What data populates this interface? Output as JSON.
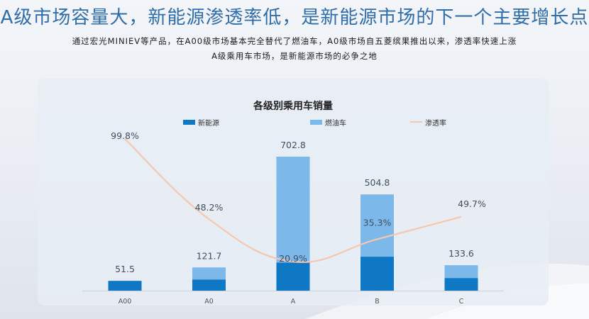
{
  "header": {
    "title": "A级市场容量大，新能源渗透率低，是新能源市场的下一个主要增长点",
    "subtitle_line1": "通过宏光MINIEV等产品，在A00级市场基本完全替代了燃油车，A0级市场自五菱缤果推出以来，渗透率快速上涨",
    "subtitle_line2": "A级乘用车市场，是新能源市场的必争之地"
  },
  "colors": {
    "title": "#2f6ea8",
    "new_energy": "#0f78c4",
    "fuel": "#7db8ea",
    "penetration": "#f5c7b0"
  },
  "chart_data": {
    "type": "bar",
    "stacked": true,
    "title": "各级别乘用车销量",
    "categories": [
      "A00",
      "A0",
      "A",
      "B",
      "C"
    ],
    "series": [
      {
        "name": "新能源",
        "values": [
          51.5,
          58.7,
          146.9,
          178.2,
          66.4
        ]
      },
      {
        "name": "燃油车",
        "values": [
          0.0,
          63.0,
          555.9,
          326.6,
          67.2
        ]
      }
    ],
    "totals": [
      51.5,
      121.7,
      702.8,
      504.8,
      133.6
    ],
    "total_labels": [
      "51.5",
      "121.7",
      "702.8",
      "504.8",
      "133.6"
    ],
    "line_series": {
      "name": "渗透率",
      "values": [
        99.8,
        48.2,
        20.9,
        35.3,
        49.7
      ],
      "labels": [
        "99.8%",
        "48.2%",
        "20.9%",
        "35.3%",
        "49.7%"
      ]
    },
    "legend_position": "top",
    "grid": false
  }
}
